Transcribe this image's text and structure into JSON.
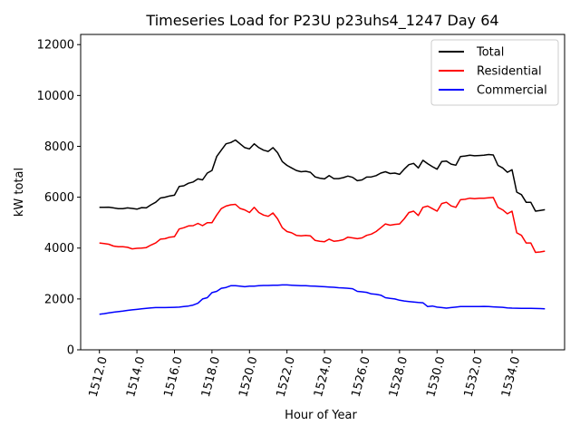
{
  "chart_data": {
    "type": "line",
    "title": "Timeseries Load for P23U p23uhs4_1247  Day 64",
    "xlabel": "Hour of Year",
    "ylabel": "kW total",
    "xlim": [
      1511.0,
      1536.8
    ],
    "ylim": [
      0,
      12400
    ],
    "xticks": [
      1512,
      1514,
      1516,
      1518,
      1520,
      1522,
      1524,
      1526,
      1528,
      1530,
      1532,
      1534
    ],
    "xtick_labels": [
      "1512.0",
      "1514.0",
      "1516.0",
      "1518.0",
      "1520.0",
      "1522.0",
      "1524.0",
      "1526.0",
      "1528.0",
      "1530.0",
      "1532.0",
      "1534.0"
    ],
    "yticks": [
      0,
      2000,
      4000,
      6000,
      8000,
      10000,
      12000
    ],
    "ytick_labels": [
      "0",
      "2000",
      "4000",
      "6000",
      "8000",
      "10000",
      "12000"
    ],
    "legend_position": "top-right",
    "x": [
      1512.0,
      1512.25,
      1512.5,
      1512.75,
      1513.0,
      1513.25,
      1513.5,
      1513.75,
      1514.0,
      1514.25,
      1514.5,
      1514.75,
      1515.0,
      1515.25,
      1515.5,
      1515.75,
      1516.0,
      1516.25,
      1516.5,
      1516.75,
      1517.0,
      1517.25,
      1517.5,
      1517.75,
      1518.0,
      1518.25,
      1518.5,
      1518.75,
      1519.0,
      1519.25,
      1519.5,
      1519.75,
      1520.0,
      1520.25,
      1520.5,
      1520.75,
      1521.0,
      1521.25,
      1521.5,
      1521.75,
      1522.0,
      1522.25,
      1522.5,
      1522.75,
      1523.0,
      1523.25,
      1523.5,
      1523.75,
      1524.0,
      1524.25,
      1524.5,
      1524.75,
      1525.0,
      1525.25,
      1525.5,
      1525.75,
      1526.0,
      1526.25,
      1526.5,
      1526.75,
      1527.0,
      1527.25,
      1527.5,
      1527.75,
      1528.0,
      1528.25,
      1528.5,
      1528.75,
      1529.0,
      1529.25,
      1529.5,
      1529.75,
      1530.0,
      1530.25,
      1530.5,
      1530.75,
      1531.0,
      1531.25,
      1531.5,
      1531.75,
      1532.0,
      1532.25,
      1532.5,
      1532.75,
      1533.0,
      1533.25,
      1533.5,
      1533.75,
      1534.0,
      1534.25,
      1534.5,
      1534.75,
      1535.0,
      1535.25,
      1535.5,
      1535.75
    ],
    "series": [
      {
        "name": "Total",
        "color": "#000000",
        "values": [
          5600,
          5600,
          5610,
          5580,
          5550,
          5550,
          5580,
          5560,
          5530,
          5590,
          5580,
          5700,
          5800,
          5970,
          6000,
          6050,
          6080,
          6420,
          6450,
          6550,
          6600,
          6720,
          6680,
          6950,
          7050,
          7600,
          7850,
          8100,
          8150,
          8250,
          8100,
          7950,
          7900,
          8100,
          7950,
          7850,
          7800,
          7950,
          7750,
          7400,
          7250,
          7150,
          7050,
          7000,
          7020,
          6980,
          6800,
          6750,
          6720,
          6850,
          6730,
          6730,
          6770,
          6830,
          6780,
          6650,
          6680,
          6790,
          6800,
          6850,
          6950,
          7000,
          6930,
          6950,
          6900,
          7100,
          7280,
          7330,
          7150,
          7450,
          7320,
          7200,
          7100,
          7400,
          7420,
          7300,
          7260,
          7600,
          7620,
          7650,
          7630,
          7640,
          7650,
          7680,
          7660,
          7250,
          7150,
          6980,
          7080,
          6200,
          6100,
          5800,
          5800,
          5450,
          5480,
          5510
        ]
      },
      {
        "name": "Residential",
        "color": "#ff0000",
        "values": [
          4200,
          4180,
          4150,
          4080,
          4050,
          4050,
          4030,
          3970,
          3990,
          4000,
          4020,
          4120,
          4200,
          4350,
          4370,
          4430,
          4450,
          4750,
          4800,
          4870,
          4880,
          4970,
          4880,
          5000,
          5000,
          5300,
          5550,
          5650,
          5700,
          5720,
          5560,
          5500,
          5400,
          5600,
          5400,
          5300,
          5250,
          5380,
          5150,
          4800,
          4650,
          4600,
          4500,
          4480,
          4500,
          4480,
          4300,
          4270,
          4250,
          4350,
          4270,
          4290,
          4330,
          4430,
          4400,
          4370,
          4400,
          4500,
          4550,
          4650,
          4800,
          4950,
          4900,
          4930,
          4950,
          5150,
          5400,
          5450,
          5280,
          5600,
          5650,
          5550,
          5450,
          5750,
          5800,
          5660,
          5600,
          5900,
          5920,
          5960,
          5940,
          5960,
          5960,
          5980,
          5990,
          5600,
          5500,
          5350,
          5450,
          4600,
          4500,
          4200,
          4200,
          3830,
          3850,
          3880
        ]
      },
      {
        "name": "Commercial",
        "color": "#0000ff",
        "values": [
          1400,
          1420,
          1450,
          1480,
          1500,
          1520,
          1550,
          1570,
          1590,
          1610,
          1630,
          1650,
          1660,
          1660,
          1660,
          1665,
          1670,
          1680,
          1700,
          1720,
          1760,
          1830,
          2000,
          2050,
          2250,
          2300,
          2420,
          2450,
          2520,
          2520,
          2500,
          2480,
          2500,
          2500,
          2520,
          2530,
          2530,
          2540,
          2540,
          2550,
          2550,
          2540,
          2530,
          2520,
          2520,
          2510,
          2500,
          2490,
          2480,
          2470,
          2460,
          2440,
          2430,
          2420,
          2400,
          2300,
          2280,
          2260,
          2200,
          2180,
          2150,
          2050,
          2020,
          2000,
          1950,
          1920,
          1900,
          1880,
          1860,
          1850,
          1700,
          1720,
          1680,
          1660,
          1640,
          1660,
          1680,
          1700,
          1700,
          1700,
          1700,
          1700,
          1705,
          1700,
          1690,
          1680,
          1670,
          1650,
          1640,
          1635,
          1630,
          1630,
          1630,
          1625,
          1620,
          1610
        ]
      }
    ]
  }
}
